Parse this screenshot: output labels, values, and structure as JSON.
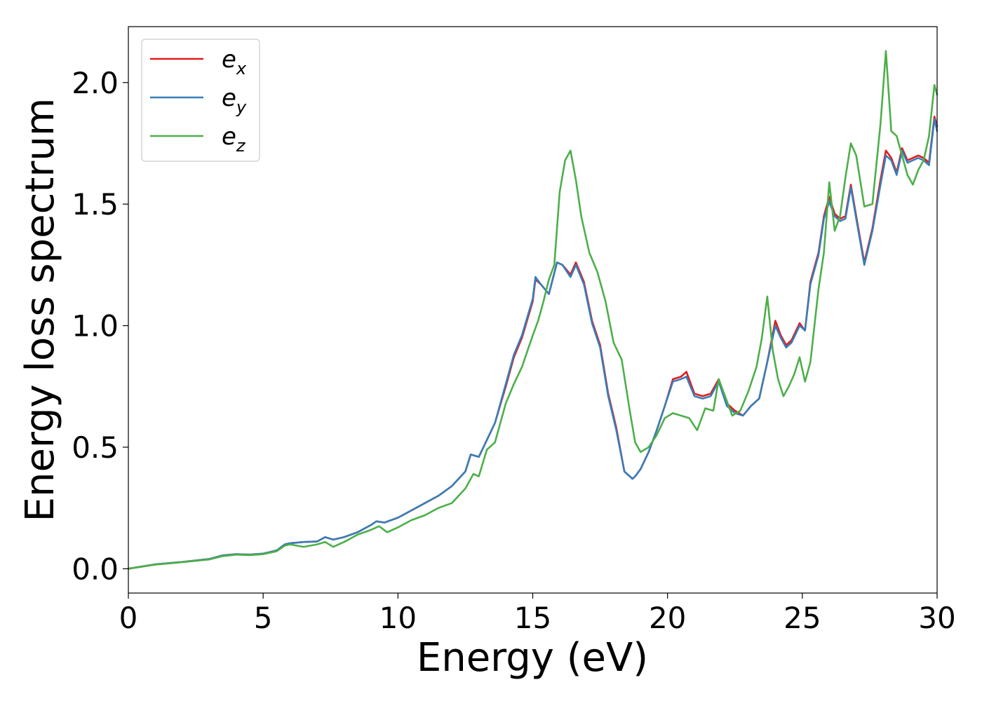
{
  "chart_data": {
    "type": "line",
    "xlabel": "Energy (eV)",
    "ylabel": "Energy loss spectrum",
    "xlim": [
      0,
      30
    ],
    "ylim": [
      -0.1,
      2.23
    ],
    "xticks": [
      "0",
      "5",
      "10",
      "15",
      "20",
      "25",
      "30"
    ],
    "yticks": [
      "0.0",
      "0.5",
      "1.0",
      "1.5",
      "2.0"
    ],
    "grid": false,
    "legend_position": "top-left",
    "series": [
      {
        "name": "e_x",
        "label_main": "e",
        "label_sub": "x",
        "color": "#e41a1c",
        "x": [
          0,
          1,
          2,
          3,
          3.5,
          4,
          4.5,
          5,
          5.5,
          5.8,
          6,
          6.5,
          7,
          7.3,
          7.6,
          8,
          8.5,
          9,
          9.2,
          9.5,
          10,
          10.5,
          11,
          11.5,
          12,
          12.5,
          12.7,
          13,
          13.3,
          13.6,
          14,
          14.3,
          14.6,
          15,
          15.1,
          15.3,
          15.6,
          15.9,
          16.1,
          16.4,
          16.6,
          16.9,
          17.2,
          17.5,
          17.8,
          18.1,
          18.4,
          18.7,
          18.8,
          19,
          19.3,
          19.6,
          19.9,
          20.2,
          20.5,
          20.7,
          21,
          21.3,
          21.6,
          21.9,
          22.2,
          22.5,
          22.8,
          23.1,
          23.4,
          23.7,
          24,
          24.2,
          24.4,
          24.6,
          24.9,
          25.1,
          25.3,
          25.6,
          25.8,
          26,
          26.2,
          26.4,
          26.6,
          26.8,
          27,
          27.3,
          27.6,
          27.9,
          28.1,
          28.3,
          28.5,
          28.7,
          28.9,
          29.1,
          29.3,
          29.5,
          29.7,
          29.9,
          30
        ],
        "y": [
          0.0,
          0.018,
          0.028,
          0.04,
          0.055,
          0.06,
          0.058,
          0.062,
          0.075,
          0.1,
          0.105,
          0.11,
          0.112,
          0.13,
          0.12,
          0.13,
          0.15,
          0.18,
          0.195,
          0.19,
          0.21,
          0.24,
          0.27,
          0.3,
          0.34,
          0.4,
          0.47,
          0.46,
          0.53,
          0.6,
          0.75,
          0.87,
          0.95,
          1.1,
          1.19,
          1.17,
          1.13,
          1.26,
          1.25,
          1.21,
          1.26,
          1.18,
          1.02,
          0.92,
          0.72,
          0.58,
          0.4,
          0.37,
          0.38,
          0.41,
          0.48,
          0.57,
          0.67,
          0.78,
          0.79,
          0.81,
          0.72,
          0.71,
          0.72,
          0.78,
          0.68,
          0.65,
          0.63,
          0.67,
          0.7,
          0.85,
          1.02,
          0.96,
          0.92,
          0.94,
          1.01,
          0.98,
          1.18,
          1.3,
          1.45,
          1.53,
          1.46,
          1.44,
          1.45,
          1.58,
          1.45,
          1.26,
          1.4,
          1.6,
          1.72,
          1.69,
          1.63,
          1.73,
          1.68,
          1.69,
          1.7,
          1.69,
          1.67,
          1.86,
          1.82
        ]
      },
      {
        "name": "e_y",
        "label_main": "e",
        "label_sub": "y",
        "color": "#377eb8",
        "x": [
          0,
          1,
          2,
          3,
          3.5,
          4,
          4.5,
          5,
          5.5,
          5.8,
          6,
          6.5,
          7,
          7.3,
          7.6,
          8,
          8.5,
          9,
          9.2,
          9.5,
          10,
          10.5,
          11,
          11.5,
          12,
          12.5,
          12.7,
          13,
          13.3,
          13.6,
          14,
          14.3,
          14.6,
          15,
          15.1,
          15.3,
          15.6,
          15.9,
          16.1,
          16.4,
          16.6,
          16.9,
          17.2,
          17.5,
          17.8,
          18.1,
          18.4,
          18.7,
          18.8,
          19,
          19.3,
          19.6,
          19.9,
          20.2,
          20.5,
          20.7,
          21,
          21.3,
          21.6,
          21.9,
          22.2,
          22.5,
          22.8,
          23.1,
          23.4,
          23.7,
          24,
          24.2,
          24.4,
          24.6,
          24.9,
          25.1,
          25.3,
          25.6,
          25.8,
          26,
          26.2,
          26.4,
          26.6,
          26.8,
          27,
          27.3,
          27.6,
          27.9,
          28.1,
          28.3,
          28.5,
          28.7,
          28.9,
          29.1,
          29.3,
          29.5,
          29.7,
          29.9,
          30
        ],
        "y": [
          0.0,
          0.018,
          0.028,
          0.04,
          0.055,
          0.06,
          0.058,
          0.062,
          0.075,
          0.1,
          0.105,
          0.11,
          0.112,
          0.13,
          0.12,
          0.13,
          0.15,
          0.18,
          0.195,
          0.19,
          0.21,
          0.24,
          0.27,
          0.3,
          0.34,
          0.4,
          0.47,
          0.46,
          0.53,
          0.6,
          0.76,
          0.88,
          0.96,
          1.11,
          1.2,
          1.17,
          1.13,
          1.26,
          1.25,
          1.2,
          1.25,
          1.17,
          1.01,
          0.91,
          0.71,
          0.57,
          0.4,
          0.37,
          0.38,
          0.41,
          0.48,
          0.57,
          0.67,
          0.77,
          0.78,
          0.79,
          0.71,
          0.7,
          0.71,
          0.77,
          0.67,
          0.64,
          0.63,
          0.67,
          0.7,
          0.85,
          1.0,
          0.95,
          0.91,
          0.93,
          1.0,
          0.98,
          1.17,
          1.29,
          1.44,
          1.51,
          1.45,
          1.43,
          1.44,
          1.57,
          1.44,
          1.25,
          1.39,
          1.58,
          1.7,
          1.68,
          1.62,
          1.72,
          1.67,
          1.68,
          1.69,
          1.68,
          1.66,
          1.85,
          1.8
        ]
      },
      {
        "name": "e_z",
        "label_main": "e",
        "label_sub": "z",
        "color": "#4daf4a",
        "x": [
          0,
          1,
          2,
          3,
          3.5,
          4,
          4.5,
          5,
          5.5,
          5.8,
          6,
          6.5,
          7,
          7.3,
          7.6,
          8,
          8.5,
          9,
          9.3,
          9.6,
          10,
          10.5,
          11,
          11.5,
          12,
          12.5,
          12.8,
          13,
          13.3,
          13.6,
          14,
          14.3,
          14.6,
          15,
          15.2,
          15.4,
          15.6,
          15.8,
          16,
          16.2,
          16.4,
          16.6,
          16.8,
          17.1,
          17.4,
          17.7,
          18.0,
          18.3,
          18.6,
          18.8,
          19,
          19.3,
          19.6,
          19.9,
          20.2,
          20.5,
          20.8,
          21.1,
          21.4,
          21.7,
          21.9,
          22.1,
          22.4,
          22.7,
          23.0,
          23.3,
          23.5,
          23.7,
          23.9,
          24.1,
          24.3,
          24.5,
          24.7,
          24.9,
          25.1,
          25.3,
          25.6,
          25.8,
          26,
          26.2,
          26.4,
          26.6,
          26.8,
          27,
          27.3,
          27.6,
          27.9,
          28.1,
          28.3,
          28.5,
          28.7,
          28.9,
          29.1,
          29.3,
          29.5,
          29.7,
          29.9,
          30
        ],
        "y": [
          0.0,
          0.017,
          0.027,
          0.038,
          0.052,
          0.058,
          0.056,
          0.06,
          0.072,
          0.095,
          0.1,
          0.09,
          0.1,
          0.11,
          0.09,
          0.11,
          0.14,
          0.16,
          0.175,
          0.15,
          0.17,
          0.2,
          0.22,
          0.25,
          0.27,
          0.33,
          0.39,
          0.38,
          0.49,
          0.52,
          0.68,
          0.76,
          0.83,
          0.96,
          1.02,
          1.1,
          1.19,
          1.25,
          1.55,
          1.68,
          1.72,
          1.6,
          1.45,
          1.3,
          1.22,
          1.1,
          0.93,
          0.86,
          0.65,
          0.52,
          0.48,
          0.5,
          0.55,
          0.62,
          0.64,
          0.63,
          0.62,
          0.57,
          0.66,
          0.65,
          0.78,
          0.72,
          0.63,
          0.65,
          0.73,
          0.83,
          0.95,
          1.12,
          0.9,
          0.78,
          0.71,
          0.75,
          0.8,
          0.87,
          0.77,
          0.85,
          1.15,
          1.3,
          1.59,
          1.39,
          1.45,
          1.61,
          1.75,
          1.7,
          1.49,
          1.5,
          1.83,
          2.13,
          1.8,
          1.78,
          1.7,
          1.62,
          1.58,
          1.64,
          1.68,
          1.78,
          1.99,
          1.95
        ]
      }
    ]
  }
}
